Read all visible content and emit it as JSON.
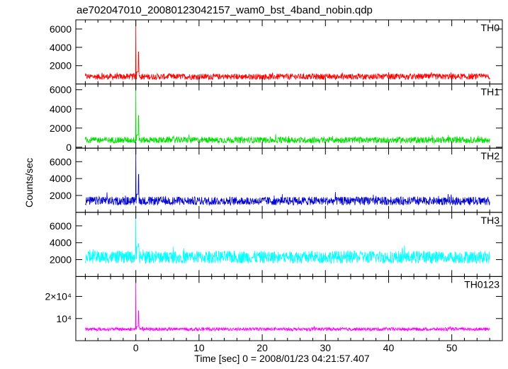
{
  "title": "ae702047010_20080123042157_wam0_bst_4band_nobin.qdp",
  "ylabel": "Counts/sec",
  "xlabel": "Time [sec] 0 = 2008/01/23 04:21:57.407",
  "chart_data": {
    "type": "line",
    "title": "ae702047010_20080123042157_wam0_bst_4band_nobin.qdp",
    "xlabel": "Time [sec] 0 = 2008/01/23 04:21:57.407",
    "ylabel": "Counts/sec",
    "xlim": [
      -9.5,
      58
    ],
    "x_ticks": [
      0,
      10,
      20,
      30,
      40,
      50
    ],
    "x_data_range": [
      -8,
      56
    ],
    "burst_time": 0,
    "panels": [
      {
        "name": "TH0",
        "color": "#ff0000",
        "ylim": [
          0,
          7000
        ],
        "y_ticks": [
          {
            "value": 2000,
            "label": "2000"
          },
          {
            "value": 4000,
            "label": "4000"
          },
          {
            "value": 6000,
            "label": "6000"
          }
        ],
        "baseline": 800,
        "noise_range": 650,
        "peak": 7000,
        "second_peak": 3500
      },
      {
        "name": "TH1",
        "color": "#00e000",
        "ylim": [
          -100,
          6600
        ],
        "y_ticks": [
          {
            "value": 0,
            "label": "0"
          },
          {
            "value": 2000,
            "label": "2000"
          },
          {
            "value": 4000,
            "label": "4000"
          },
          {
            "value": 6000,
            "label": "6000"
          }
        ],
        "baseline": 750,
        "noise_range": 650,
        "peak": 6500,
        "second_peak": 3300
      },
      {
        "name": "TH2",
        "color": "#0000d0",
        "ylim": [
          0,
          7600
        ],
        "y_ticks": [
          {
            "value": 2000,
            "label": "2000"
          },
          {
            "value": 4000,
            "label": "4000"
          },
          {
            "value": 6000,
            "label": "6000"
          }
        ],
        "baseline": 1350,
        "noise_range": 1000,
        "peak": 7500,
        "second_peak": 4500
      },
      {
        "name": "TH3",
        "color": "#00ffff",
        "ylim": [
          0,
          7600
        ],
        "y_ticks": [
          {
            "value": 2000,
            "label": "2000"
          },
          {
            "value": 4000,
            "label": "4000"
          },
          {
            "value": 6000,
            "label": "6000"
          }
        ],
        "baseline": 2300,
        "noise_range": 1500,
        "peak": 7500,
        "second_peak": 3900
      },
      {
        "name": "TH0123",
        "color": "#ff00ff",
        "ylim": [
          0,
          29000
        ],
        "y_ticks": [
          {
            "value": 10000,
            "label": "10⁴"
          },
          {
            "value": 20000,
            "label": "2×10⁴"
          }
        ],
        "baseline": 5200,
        "noise_range": 1500,
        "peak": 29000,
        "second_peak": 13500
      }
    ]
  }
}
